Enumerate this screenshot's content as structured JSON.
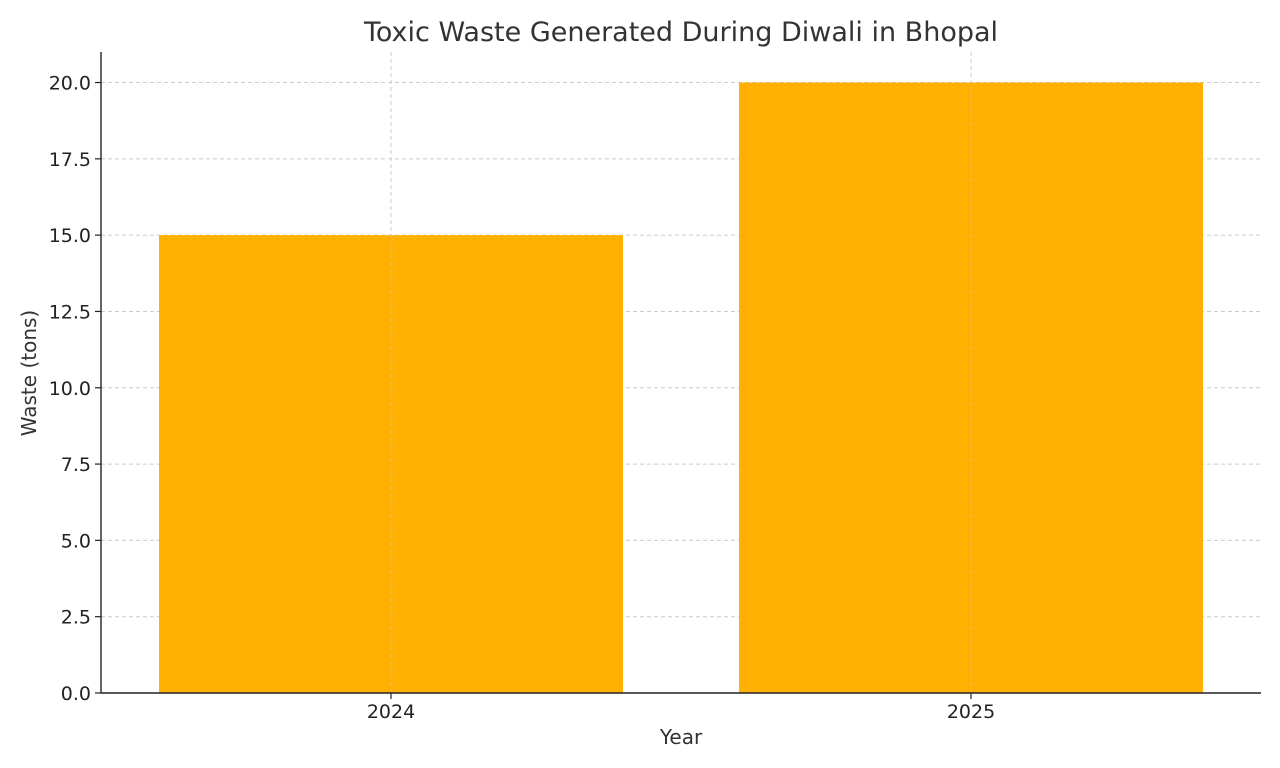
{
  "chart_data": {
    "type": "bar",
    "title": "Toxic Waste Generated During Diwali in Bhopal",
    "xlabel": "Year",
    "ylabel": "Waste (tons)",
    "categories": [
      "2024",
      "2025"
    ],
    "values": [
      15,
      20
    ],
    "ylim": [
      0,
      21
    ],
    "yticks": [
      0.0,
      2.5,
      5.0,
      7.5,
      10.0,
      12.5,
      15.0,
      17.5,
      20.0
    ],
    "ytick_labels": [
      "0.0",
      "2.5",
      "5.0",
      "7.5",
      "10.0",
      "12.5",
      "15.0",
      "17.5",
      "20.0"
    ],
    "grid": true,
    "bar_color": "#FFB000"
  }
}
